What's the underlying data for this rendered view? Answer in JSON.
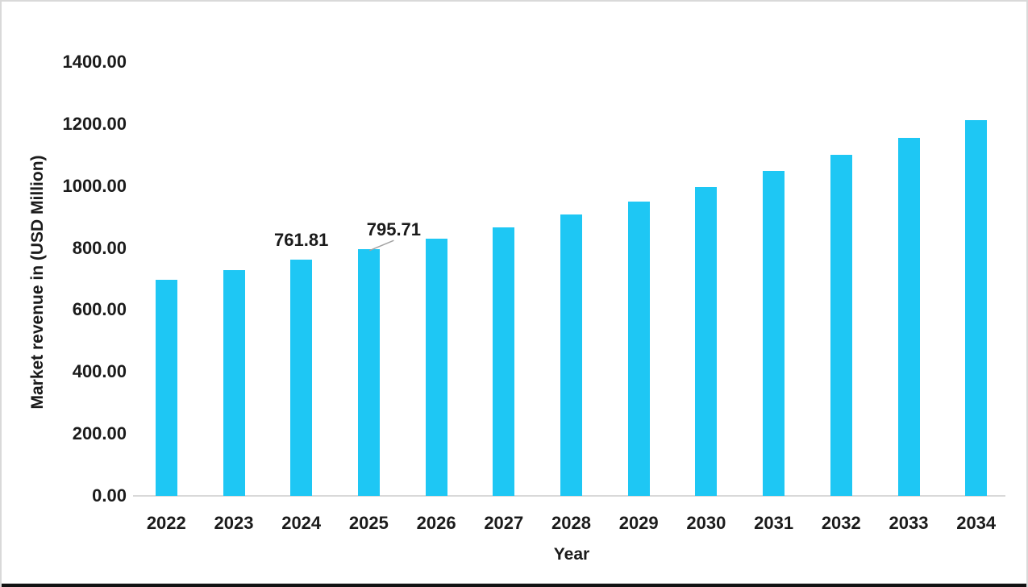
{
  "chart_data": {
    "type": "bar",
    "title": "",
    "xlabel": "Year",
    "ylabel": "Market revenue in (USD Million)",
    "categories": [
      "2022",
      "2023",
      "2024",
      "2025",
      "2026",
      "2027",
      "2028",
      "2029",
      "2030",
      "2031",
      "2032",
      "2033",
      "2034"
    ],
    "values": [
      698,
      729,
      761.81,
      795.71,
      830,
      867,
      908,
      950,
      998,
      1048,
      1101,
      1156,
      1214
    ],
    "labeled_points": [
      {
        "category": "2024",
        "label": "761.81",
        "leader_line": false
      },
      {
        "category": "2025",
        "label": "795.71",
        "leader_line": true
      }
    ],
    "y_ticks": [
      "1400.00",
      "1200.00",
      "1000.00",
      "800.00",
      "600.00",
      "400.00",
      "200.00",
      "0.00"
    ],
    "ylim": [
      0,
      1400
    ],
    "grid": false,
    "legend": false,
    "bar_color": "#1ec7f4",
    "axis_line_color": "#d9d9d9",
    "leader_line_color": "#a3a3a3",
    "text_color": "#1b1b1b"
  }
}
